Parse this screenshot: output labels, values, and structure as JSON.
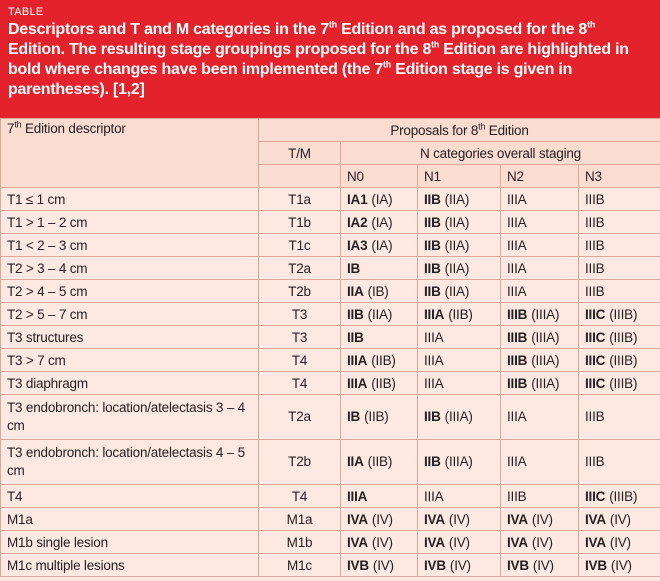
{
  "header": {
    "label": "TABLE",
    "title": [
      "Descriptors and T and M categories in the 7",
      "th",
      " Edition and as proposed for the 8",
      "th",
      " Edition. The resulting stage groupings proposed for the 8",
      "th",
      " Edition are highlighted in bold where changes have been implemented (the 7",
      "th",
      " Edition stage is given in parentheses). [1,2]"
    ]
  },
  "table": {
    "header_rows": {
      "descriptor": [
        "7",
        "th",
        " Edition descriptor"
      ],
      "proposals": [
        "Proposals for 8",
        "th",
        " Edition"
      ],
      "tm": "T/M",
      "n_categories": "N categories overall staging",
      "n_columns": [
        "N0",
        "N1",
        "N2",
        "N3"
      ]
    },
    "rows": [
      [
        "T1 ≤ 1 cm",
        "T1a",
        {
          "bold": "IA1",
          "rest": "(IA)"
        },
        {
          "bold": "IIB",
          "rest": "(IIA)"
        },
        {
          "rest": "IIIA"
        },
        {
          "rest": "IIIB"
        }
      ],
      [
        "T1 > 1 – 2 cm",
        "T1b",
        {
          "bold": "IA2",
          "rest": "(IA)"
        },
        {
          "bold": "IIB",
          "rest": "(IIA)"
        },
        {
          "rest": "IIIA"
        },
        {
          "rest": "IIIB"
        }
      ],
      [
        "T1 < 2 – 3 cm",
        "T1c",
        {
          "bold": "IA3",
          "rest": "(IA)"
        },
        {
          "bold": "IIB",
          "rest": "(IIA)"
        },
        {
          "rest": "IIIA"
        },
        {
          "rest": "IIIB"
        }
      ],
      [
        "T2 > 3 – 4 cm",
        "T2a",
        {
          "bold": "IB"
        },
        {
          "bold": "IIB",
          "rest": "(IIA)"
        },
        {
          "rest": "IIIA"
        },
        {
          "rest": "IIIB"
        }
      ],
      [
        "T2 > 4 – 5 cm",
        "T2b",
        {
          "bold": "IIA",
          "rest": "(IB)"
        },
        {
          "bold": "IIB",
          "rest": "(IIA)"
        },
        {
          "rest": "IIIA"
        },
        {
          "rest": "IIIB"
        }
      ],
      [
        "T2 > 5 – 7 cm",
        "T3",
        {
          "bold": "IIB",
          "rest": "(IIA)"
        },
        {
          "bold": "IIIA",
          "rest": "(IIB)"
        },
        {
          "bold": "IIIB",
          "rest": "(IIIA)"
        },
        {
          "bold": "IIIC",
          "rest": "(IIIB)"
        }
      ],
      [
        "T3 structures",
        "T3",
        {
          "bold": "IIB"
        },
        {
          "rest": "IIIA"
        },
        {
          "bold": "IIIB",
          "rest": "(IIIA)"
        },
        {
          "bold": "IIIC",
          "rest": "(IIIB)"
        }
      ],
      [
        "T3 > 7 cm",
        "T4",
        {
          "bold": "IIIA",
          "rest": "(IIB)"
        },
        {
          "rest": "IIIA"
        },
        {
          "bold": "IIIB",
          "rest": "(IIIA)"
        },
        {
          "bold": "IIIC",
          "rest": "(IIIB)"
        }
      ],
      [
        "T3 diaphragm",
        "T4",
        {
          "bold": "IIIA",
          "rest": "(IIB)"
        },
        {
          "rest": "IIIA"
        },
        {
          "bold": "IIIB",
          "rest": "(IIIA)"
        },
        {
          "bold": "IIIC",
          "rest": "(IIIB)"
        }
      ],
      [
        "T3 endobronch: location/atelectasis 3 – 4 cm",
        "T2a",
        {
          "bold": "IB",
          "rest": "(IIB)"
        },
        {
          "bold": "IIB",
          "rest": "(IIIA)"
        },
        {
          "rest": "IIIA"
        },
        {
          "rest": "IIIB"
        }
      ],
      [
        "T3 endobronch: location/atelectasis 4 – 5 cm",
        "T2b",
        {
          "bold": "IIA",
          "rest": "(IIB)"
        },
        {
          "bold": "IIB",
          "rest": "(IIIA)"
        },
        {
          "rest": "IIIA"
        },
        {
          "rest": "IIIB"
        }
      ],
      [
        "T4",
        "T4",
        {
          "bold": "IIIA"
        },
        {
          "rest": "IIIA"
        },
        {
          "rest": "IIIB"
        },
        {
          "bold": "IIIC",
          "rest": "(IIIB)"
        }
      ],
      [
        "M1a",
        "M1a",
        {
          "bold": "IVA",
          "rest": "(IV)"
        },
        {
          "bold": "IVA",
          "rest": "(IV)"
        },
        {
          "bold": "IVA",
          "rest": "(IV)"
        },
        {
          "bold": "IVA",
          "rest": "(IV)"
        }
      ],
      [
        "M1b single lesion",
        "M1b",
        {
          "bold": "IVA",
          "rest": "(IV)"
        },
        {
          "bold": "IVA",
          "rest": "(IV)"
        },
        {
          "bold": "IVA",
          "rest": "(IV)"
        },
        {
          "bold": "IVA",
          "rest": "(IV)"
        }
      ],
      [
        "M1c multiple lesions",
        "M1c",
        {
          "bold": "IVB",
          "rest": "(IV)"
        },
        {
          "bold": "IVB",
          "rest": "(IV)"
        },
        {
          "bold": "IVB",
          "rest": "(IV)"
        },
        {
          "bold": "IVB",
          "rest": "(IV)"
        }
      ]
    ]
  }
}
